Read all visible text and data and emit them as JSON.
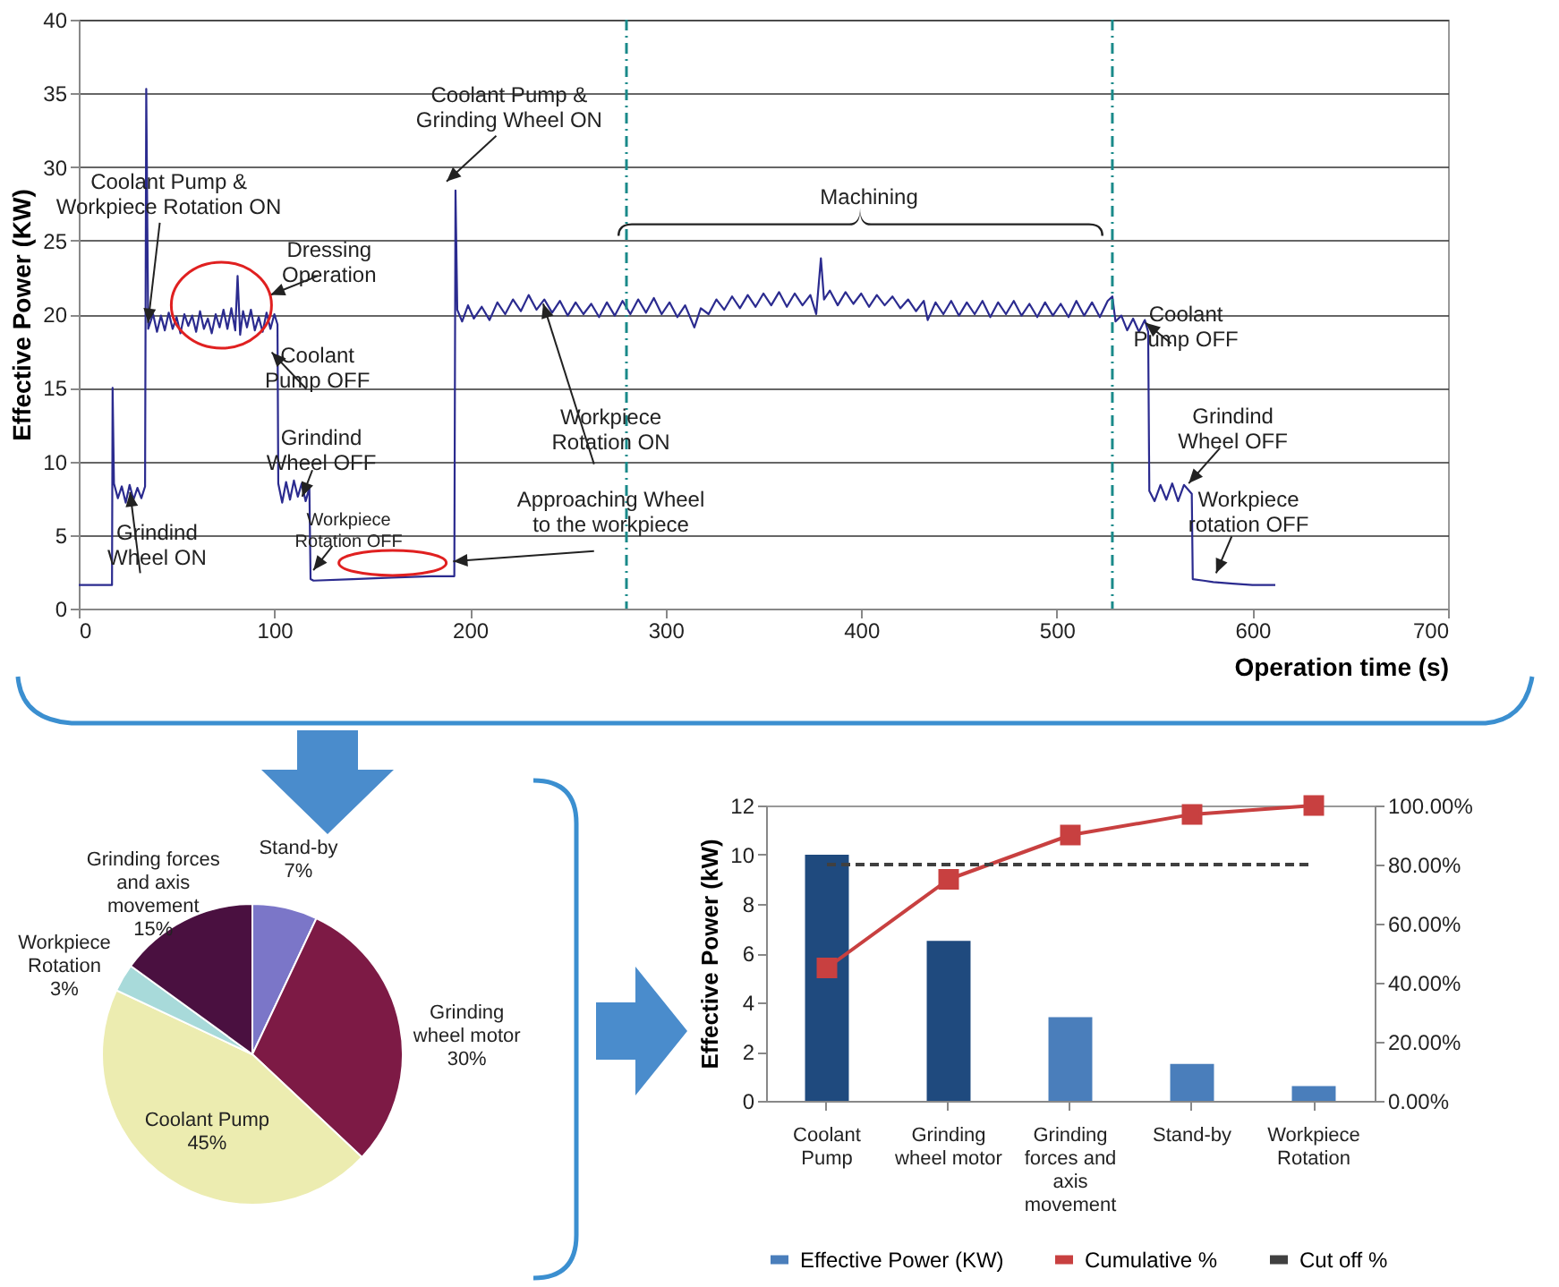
{
  "chart_data": [
    {
      "type": "line",
      "xlabel": "Operation time (s)",
      "ylabel": "Effective Power (KW)",
      "xlim": [
        0,
        700
      ],
      "ylim": [
        0,
        40
      ],
      "xticks": [
        0,
        100,
        200,
        300,
        400,
        500,
        600,
        700
      ],
      "yticks": [
        0,
        5,
        10,
        15,
        20,
        25,
        30,
        35,
        40
      ],
      "grid": "y",
      "x": [
        0,
        17,
        17.3,
        18,
        20,
        22,
        24,
        26,
        28,
        30,
        32,
        33.9,
        34.5,
        35.5,
        38,
        40,
        42,
        44,
        46,
        48,
        50,
        52,
        54,
        56,
        58,
        60,
        62,
        64,
        66,
        68,
        70,
        72,
        74,
        76,
        78,
        80,
        81.2,
        82.5,
        84,
        86,
        88,
        90,
        92,
        94,
        96,
        98,
        100,
        101.6,
        102,
        104,
        106,
        108,
        110,
        112,
        114,
        116,
        117.9,
        118.5,
        120,
        140,
        160,
        180,
        192,
        192.6,
        193.5,
        196,
        199,
        202,
        206,
        210,
        214,
        218,
        222,
        226,
        230,
        234,
        238,
        242,
        246,
        250,
        254,
        258,
        262,
        266,
        270,
        274,
        278,
        282,
        286,
        290,
        294,
        298,
        302,
        306,
        310,
        314.7,
        318,
        322,
        326,
        330,
        334,
        338,
        342,
        346,
        350,
        354,
        358,
        362,
        366,
        370,
        374,
        377,
        379.4,
        381,
        384,
        388,
        392,
        396,
        400,
        404,
        408,
        412,
        416,
        420,
        424,
        428,
        432,
        434,
        438,
        442,
        446,
        450,
        454,
        458,
        462,
        466,
        470,
        474,
        478,
        482,
        486,
        490,
        494,
        498,
        502,
        506,
        510,
        514,
        518,
        522,
        526,
        528.4,
        530,
        533,
        536,
        539,
        542,
        545,
        546.7,
        547.3,
        550,
        553,
        556,
        559,
        562,
        565,
        569,
        569.5,
        575,
        580,
        590,
        600,
        611.7
      ],
      "series": [
        {
          "color": "#2b2b8f",
          "values": [
            1.6,
            1.6,
            15,
            8.5,
            7.5,
            8.3,
            7.2,
            8.4,
            7.4,
            8.2,
            7.5,
            8.3,
            35.3,
            19,
            20,
            18.8,
            19.9,
            18.9,
            20.1,
            19,
            19.8,
            18.7,
            20,
            19.2,
            19.9,
            18.8,
            20.2,
            19,
            19.7,
            18.7,
            20,
            19.1,
            20.3,
            19,
            20.4,
            18.9,
            22.6,
            18.6,
            20.2,
            19.1,
            20.3,
            18.9,
            19.8,
            18.8,
            20.1,
            19,
            20,
            19.3,
            8.5,
            7.2,
            8.6,
            7.4,
            8.7,
            7.6,
            8.5,
            7.3,
            8.2,
            2,
            1.9,
            2,
            2.1,
            2.2,
            2.2,
            28.4,
            20.3,
            19.5,
            20.6,
            19.7,
            20.5,
            19.6,
            20.8,
            20,
            21,
            20.2,
            21.3,
            20.3,
            21,
            20.1,
            20.9,
            19.9,
            20.8,
            20,
            20.7,
            19.8,
            20.8,
            19.9,
            20.9,
            20,
            21,
            20.1,
            21.1,
            20,
            20.8,
            19.8,
            20.6,
            19.1,
            20.4,
            20,
            21,
            20.3,
            21.2,
            20.4,
            21.3,
            20.5,
            21.4,
            20.6,
            21.5,
            20.5,
            21.4,
            20.6,
            21.3,
            20,
            23.8,
            21,
            21.6,
            20.6,
            21.5,
            20.7,
            21.4,
            20.5,
            21.3,
            20.6,
            21.2,
            20.4,
            21,
            20.2,
            20.9,
            19.6,
            20.8,
            20,
            20.9,
            19.9,
            20.8,
            20,
            20.9,
            19.8,
            20.8,
            20,
            20.9,
            19.9,
            20.7,
            19.8,
            20.8,
            19.9,
            20.7,
            19.8,
            20.9,
            19.9,
            20.8,
            19.8,
            20.9,
            21.2,
            19.5,
            19.9,
            18.9,
            19.7,
            18.8,
            19.6,
            18.8,
            8,
            7.3,
            8.4,
            7.4,
            8.5,
            7.3,
            8.4,
            7.8,
            2,
            1.9,
            1.8,
            1.7,
            1.6,
            1.6
          ]
        }
      ],
      "ref_lines": [
        {
          "axis": "x",
          "value": 280,
          "color": "#1a8a8a",
          "line_style": "dashed"
        },
        {
          "axis": "x",
          "value": 528.4,
          "color": "#1a8a8a",
          "line_style": "dashed"
        }
      ],
      "annotations": [
        {
          "text": "Coolant Pump &\nWorkpiece Rotation ON",
          "x": 40,
          "y": 18.8
        },
        "Dressing\nOperation",
        {
          "text": "Coolant\nPump OFF",
          "x": 103.2,
          "y": 16.8
        },
        {
          "text": "Grindind\nWheel OFF",
          "x": 118.8,
          "y": 7
        },
        {
          "text": "Workpiece\nRotation OFF",
          "x": 124.5,
          "y": 2
        },
        {
          "text": "Grindind\nWheel ON",
          "x": 30.8,
          "y": 7.3
        },
        {
          "text": "Coolant Pump &\nGrinding Wheel ON",
          "x": 192.6,
          "y": 28.4
        },
        {
          "text": "Workpiece\nRotation ON",
          "x": 242,
          "y": 20.1
        },
        {
          "text": "Approaching Wheel\nto the workpiece",
          "x": 196,
          "y": 2.6
        },
        "Machining",
        {
          "text": "Coolant\nPump OFF",
          "x": 550,
          "y": 18.8
        },
        {
          "text": "Grindind\nWheel OFF",
          "x": 572,
          "y": 7.9
        },
        {
          "text": "Workpiece\nrotation OFF",
          "x": 586,
          "y": 1.8
        }
      ]
    },
    {
      "type": "pie",
      "categories": [
        "Stand-by",
        "Grinding\nwheel motor",
        "Coolant Pump",
        "Workpiece\nRotation",
        "Grinding forces\nand axis\nmovement"
      ],
      "values": [
        7,
        30,
        45,
        3,
        15
      ],
      "colors": [
        "#7b76c8",
        "#7d1a45",
        "#ececb0",
        "#a8dada",
        "#4a1040"
      ],
      "value_labels": [
        "7%",
        "30%",
        "45%",
        "3%",
        "15%"
      ]
    },
    {
      "type": "bar",
      "categories": [
        "Coolant\nPump",
        "Grinding\nwheel motor",
        "Grinding\nforces and\naxis\nmovement",
        "Stand-by",
        "Workpiece\nRotation"
      ],
      "ylabel": "Effective Power (kW)",
      "ylim": [
        0,
        12
      ],
      "yticks": [
        0,
        2,
        4,
        6,
        8,
        10,
        12
      ],
      "y2lim": [
        0,
        100
      ],
      "y2ticks": [
        {
          "value": 0,
          "label": "0.00%"
        },
        {
          "value": 20,
          "label": "20.00%"
        },
        {
          "value": 40,
          "label": "40.00%"
        },
        {
          "value": 60,
          "label": "60.00%"
        },
        {
          "value": 80,
          "label": "80.00%"
        },
        {
          "value": 100,
          "label": "100.00%"
        }
      ],
      "legend": "bottom",
      "series": [
        {
          "name": "Effective Power (KW)",
          "type": "bar",
          "color": "#4a7ebb",
          "colors": [
            "#1f4a7e",
            "#1f4a7e",
            "#4a7ebb",
            "#4a7ebb",
            "#4a7ebb"
          ],
          "values": [
            10,
            6.5,
            3.4,
            1.5,
            0.6
          ]
        },
        {
          "name": "Cumulative %",
          "type": "line",
          "axis": "y2",
          "color": "#c84040",
          "marker": "square",
          "values": [
            45,
            75,
            90,
            97,
            100
          ]
        },
        {
          "name": "Cut off %",
          "type": "line",
          "axis": "y2",
          "color": "#404040",
          "line_style": "dashed",
          "marker": "none",
          "values": [
            80,
            80,
            80,
            80,
            80
          ]
        }
      ]
    }
  ]
}
